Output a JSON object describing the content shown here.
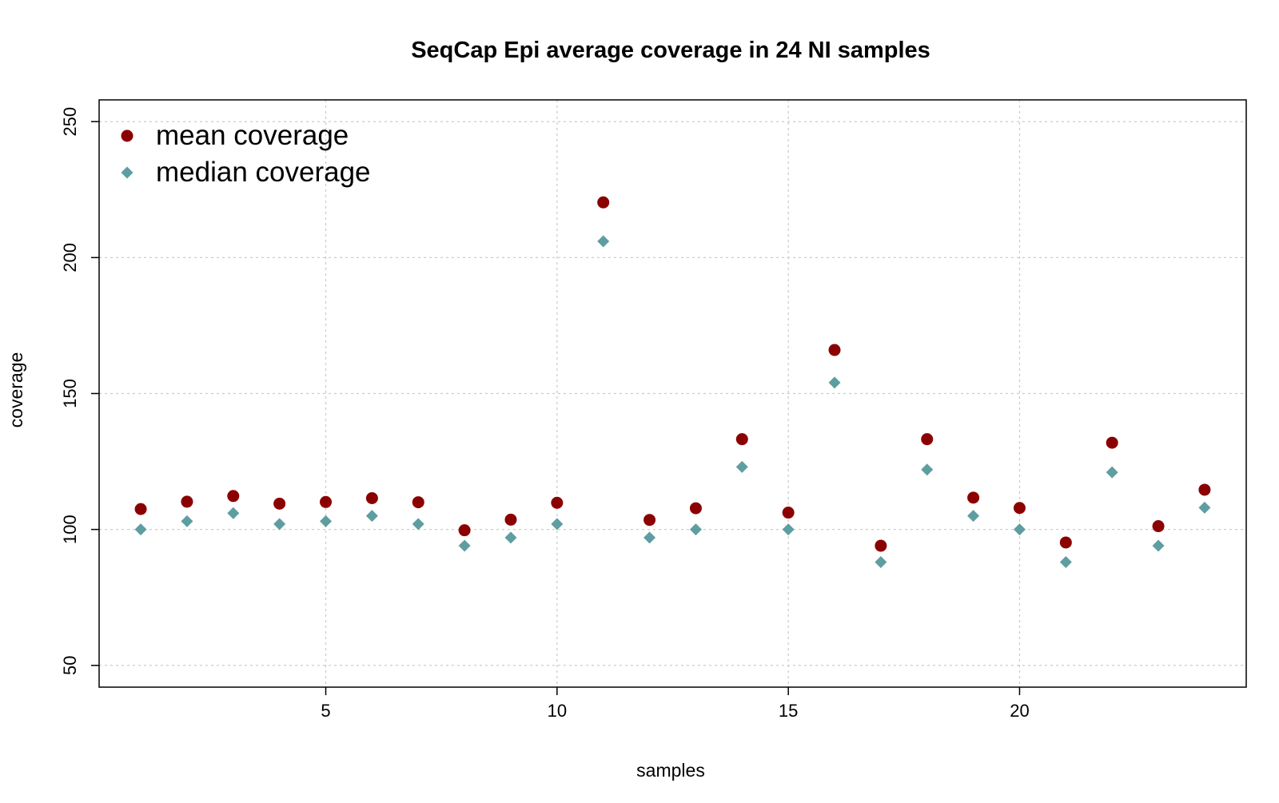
{
  "chart_data": {
    "type": "scatter",
    "title": "SeqCap Epi average coverage in 24 NI samples",
    "xlabel": "samples",
    "ylabel": "coverage",
    "xlim": [
      0.1,
      24.9
    ],
    "ylim": [
      42,
      258
    ],
    "xticks": [
      5,
      10,
      15,
      20
    ],
    "xtick_labels": [
      "5",
      "10",
      "15",
      "20"
    ],
    "yticks": [
      50,
      100,
      150,
      200,
      250
    ],
    "ytick_labels": [
      "50",
      "100",
      "150",
      "200",
      "250"
    ],
    "grid": true,
    "legend_position": "top-left",
    "series": [
      {
        "name": "mean coverage",
        "marker": "circle",
        "color": "#8B0000",
        "x": [
          1,
          2,
          3,
          4,
          5,
          6,
          7,
          8,
          9,
          10,
          11,
          12,
          13,
          14,
          15,
          16,
          17,
          18,
          19,
          20,
          21,
          22,
          23,
          24
        ],
        "values": [
          107.5,
          110.2,
          112.3,
          109.5,
          110.1,
          111.5,
          110.0,
          99.7,
          103.6,
          109.8,
          220.3,
          103.5,
          107.8,
          133.2,
          106.2,
          166.0,
          94.0,
          133.2,
          111.7,
          107.9,
          95.2,
          131.9,
          101.2,
          114.6
        ]
      },
      {
        "name": "median coverage",
        "marker": "diamond",
        "color": "#5F9EA0",
        "x": [
          1,
          2,
          3,
          4,
          5,
          6,
          7,
          8,
          9,
          10,
          11,
          12,
          13,
          14,
          15,
          16,
          17,
          18,
          19,
          20,
          21,
          22,
          23,
          24
        ],
        "values": [
          100,
          103,
          106,
          102,
          103,
          105,
          102,
          94,
          97,
          102,
          206,
          97,
          100,
          123,
          100,
          154,
          88,
          122,
          105,
          100,
          88,
          121,
          94,
          108
        ]
      }
    ]
  }
}
